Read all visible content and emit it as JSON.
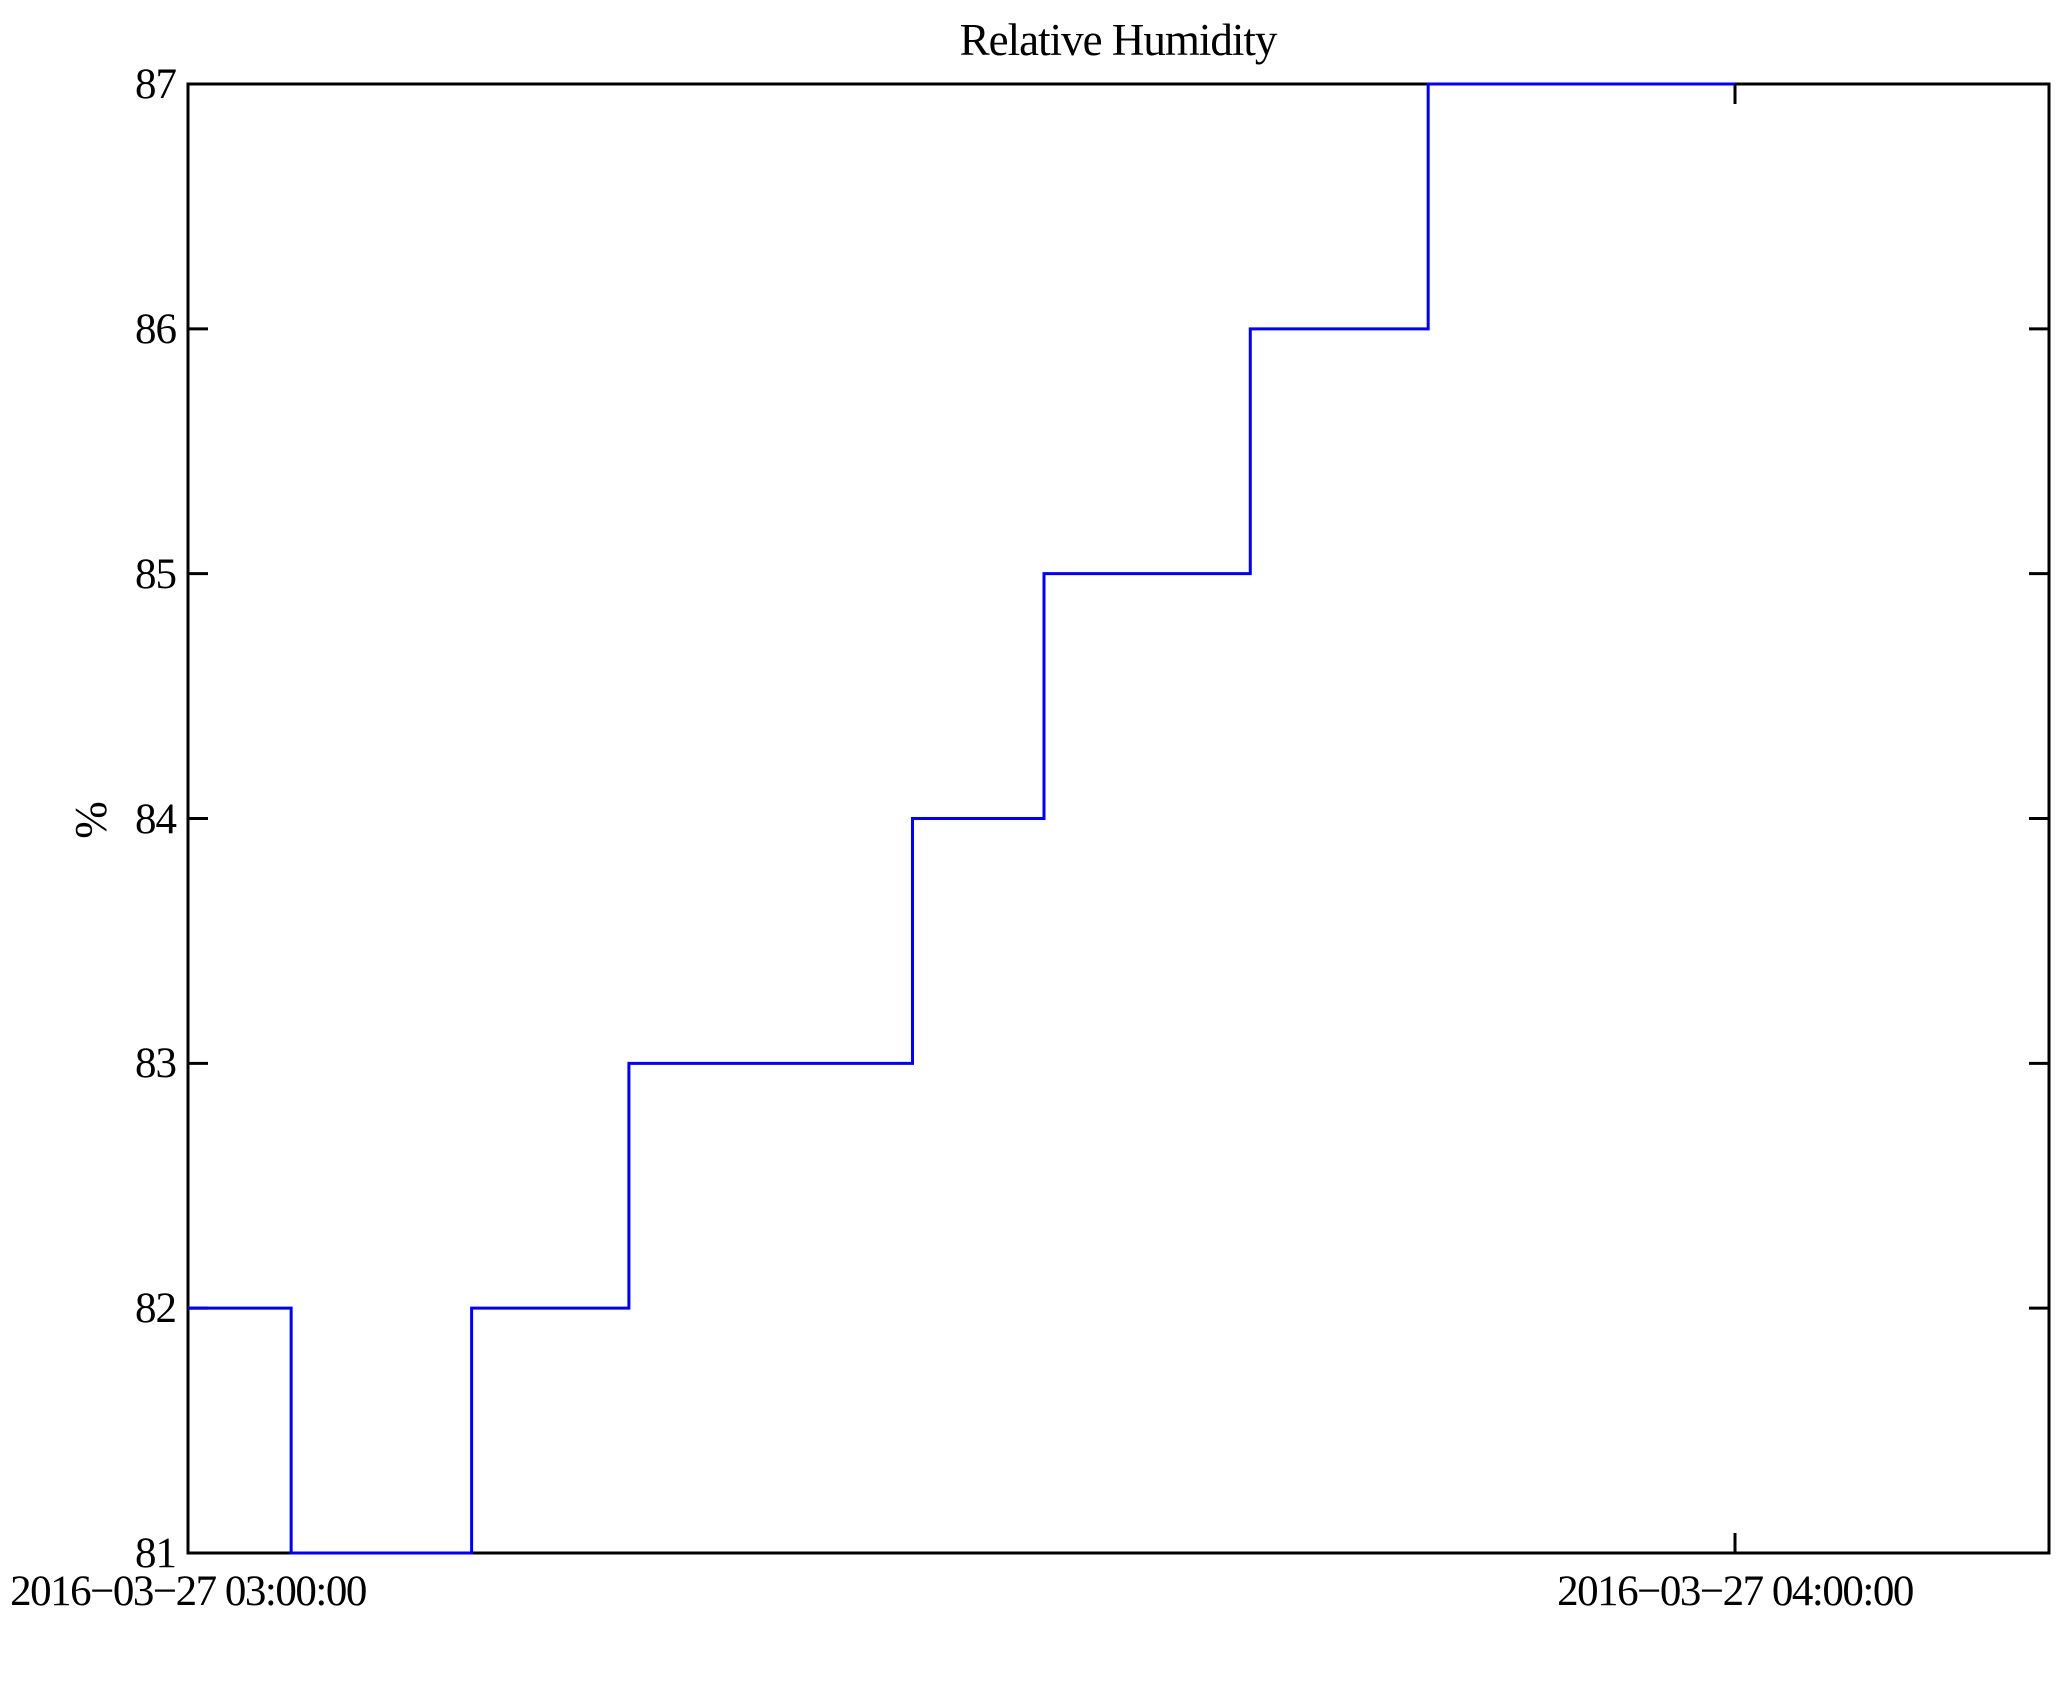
{
  "chart_data": {
    "type": "line",
    "step_mode": "post",
    "title": "Relative Humidity",
    "ylabel": "%",
    "line_color": "#0000f0",
    "axis_color": "#000000",
    "background_color": "#ffffff",
    "legend": "none",
    "grid": false,
    "y_axis": {
      "min": 81,
      "max": 87,
      "ticks": [
        81,
        82,
        83,
        84,
        85,
        86,
        87
      ],
      "tick_labels": [
        "81",
        "82",
        "83",
        "84",
        "85",
        "86",
        "87"
      ]
    },
    "x_axis": {
      "min_minutes": 0,
      "max_minutes": 72.2,
      "ticks": [
        {
          "minutes": 0,
          "label": "2016−03−27 03:00:00"
        },
        {
          "minutes": 60,
          "label": "2016−03−27 04:00:00"
        }
      ]
    },
    "series": [
      {
        "name": "Relative Humidity",
        "points": [
          {
            "time": "2016-03-27 03:00:00",
            "minutes": 0,
            "value": 82
          },
          {
            "time": "2016-03-27 03:04:00",
            "minutes": 4.0,
            "value": 81
          },
          {
            "time": "2016-03-27 03:11:00",
            "minutes": 11.0,
            "value": 82
          },
          {
            "time": "2016-03-27 03:17:00",
            "minutes": 17.1,
            "value": 83
          },
          {
            "time": "2016-03-27 03:28:00",
            "minutes": 28.1,
            "value": 84
          },
          {
            "time": "2016-03-27 03:33:00",
            "minutes": 33.2,
            "value": 85
          },
          {
            "time": "2016-03-27 03:41:00",
            "minutes": 41.2,
            "value": 86
          },
          {
            "time": "2016-03-27 03:48:00",
            "minutes": 48.1,
            "value": 87
          },
          {
            "time": "2016-03-27 04:00:00",
            "minutes": 60,
            "value": 87
          }
        ]
      }
    ]
  }
}
